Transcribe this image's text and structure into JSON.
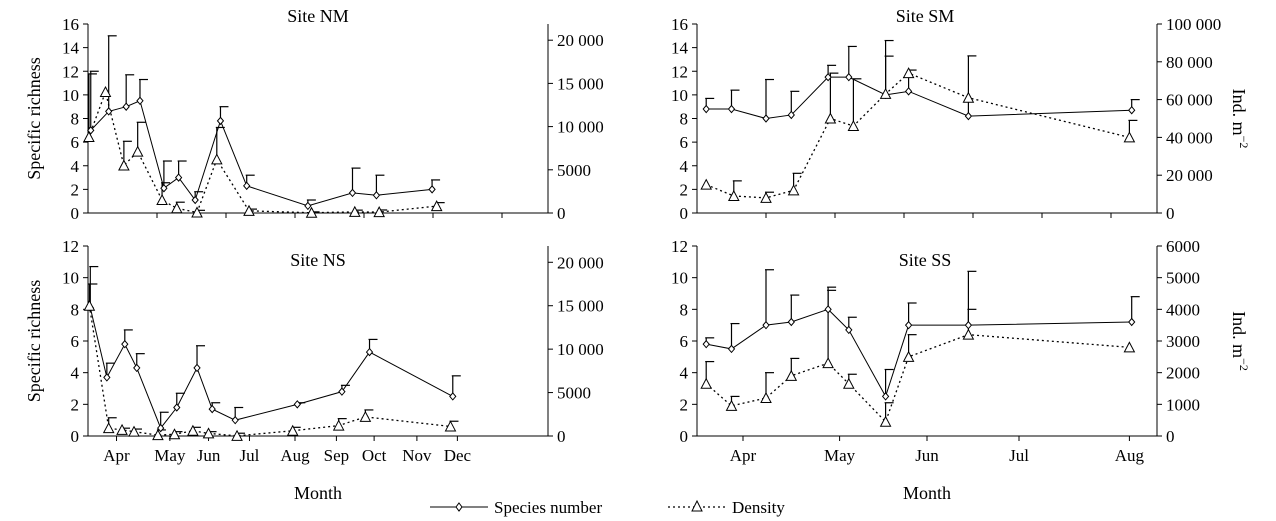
{
  "legend": {
    "species": "Species number",
    "density": "Density"
  },
  "chart_data": [
    {
      "id": "NM",
      "type": "line",
      "title": "Site NM",
      "ylabel": "Specific richness",
      "y2label": "",
      "xlabel": "",
      "ylim": [
        0,
        16
      ],
      "yticks": [
        0,
        2,
        4,
        6,
        8,
        10,
        12,
        14,
        16
      ],
      "y2lim": [
        0,
        21875
      ],
      "y2ticks": [
        0,
        5000,
        10000,
        15000,
        20000
      ],
      "y2ticklabels": [
        "0",
        "5000",
        "10 000",
        "15 000",
        "20 000"
      ],
      "xlim": [
        0,
        10
      ],
      "months": [],
      "series": [
        {
          "name": "Species number",
          "x": [
            0.06,
            0.45,
            0.83,
            1.13,
            1.65,
            1.97,
            2.33,
            2.88,
            3.45,
            4.78,
            5.75,
            6.27,
            7.48
          ],
          "y": [
            7.0,
            8.6,
            9.0,
            9.5,
            2.1,
            3.0,
            1.1,
            7.8,
            2.3,
            0.6,
            1.7,
            1.5,
            2.0
          ],
          "err": [
            5.0,
            6.4,
            2.7,
            1.8,
            2.3,
            1.4,
            0.7,
            1.2,
            0.9,
            0.5,
            2.1,
            1.7,
            0.8
          ]
        },
        {
          "name": "Density",
          "x": [
            0.02,
            0.38,
            0.78,
            1.08,
            1.61,
            1.93,
            2.37,
            2.8,
            3.5,
            4.86,
            5.8,
            6.33,
            7.58
          ],
          "y": [
            8800,
            14000,
            5500,
            7100,
            1500,
            550,
            60,
            6200,
            250,
            30,
            130,
            100,
            800
          ],
          "err": [
            7300,
            0,
            2800,
            3400,
            2000,
            700,
            250,
            3700,
            200,
            100,
            200,
            250,
            400
          ]
        }
      ]
    },
    {
      "id": "SM",
      "type": "line",
      "title": "Site SM",
      "ylabel": "",
      "y2label": "Ind. m",
      "y2label_sup": "−2",
      "xlabel": "",
      "ylim": [
        0,
        16
      ],
      "yticks": [
        0,
        2,
        4,
        6,
        8,
        10,
        12,
        14,
        16
      ],
      "y2lim": [
        0,
        100000
      ],
      "y2ticks": [
        0,
        20000,
        40000,
        60000,
        80000,
        100000
      ],
      "y2ticklabels": [
        "0",
        "20 000",
        "40 000",
        "60 000",
        "80 000",
        "100 000"
      ],
      "xlim": [
        0,
        10
      ],
      "months": [],
      "series": [
        {
          "name": "Species number",
          "x": [
            0.2,
            0.75,
            1.5,
            2.05,
            2.85,
            3.3,
            4.1,
            4.6,
            5.9,
            9.45
          ],
          "y": [
            8.8,
            8.8,
            8.0,
            8.3,
            11.5,
            11.5,
            10.0,
            10.3,
            8.2,
            8.7
          ],
          "err": [
            0.9,
            1.6,
            3.3,
            2.0,
            1.0,
            2.6,
            4.6,
            1.8,
            5.1,
            0.9
          ]
        },
        {
          "name": "Density",
          "x": [
            0.2,
            0.8,
            1.5,
            2.1,
            2.9,
            3.4,
            4.1,
            4.6,
            5.9,
            9.4
          ],
          "y": [
            15000,
            9000,
            8000,
            12000,
            50000,
            46000,
            63000,
            74000,
            61000,
            40000
          ],
          "err": [
            0,
            8000,
            3000,
            9000,
            24000,
            25000,
            20000,
            0,
            0,
            9000
          ]
        }
      ]
    },
    {
      "id": "NS",
      "type": "line",
      "title": "Site NS",
      "ylabel": "Specific richness",
      "y2label": "",
      "xlabel": "Month",
      "ylim": [
        0,
        12
      ],
      "yticks": [
        0,
        2,
        4,
        6,
        8,
        10,
        12
      ],
      "y2lim": [
        0,
        21875
      ],
      "y2ticks": [
        0,
        5000,
        10000,
        15000,
        20000
      ],
      "y2ticklabels": [
        "0",
        "5000",
        "10 000",
        "15 000",
        "20 000"
      ],
      "xlim": [
        0,
        10
      ],
      "months": [
        "Apr",
        "May",
        "Jun",
        "Jul",
        "Aug",
        "Sep",
        "Oct",
        "Nov",
        "Dec"
      ],
      "month_positions": [
        0.62,
        1.78,
        2.62,
        3.51,
        4.5,
        5.4,
        6.22,
        7.15,
        8.03
      ],
      "series": [
        {
          "name": "Species number",
          "x": [
            0.05,
            0.41,
            0.8,
            1.06,
            1.58,
            1.93,
            2.37,
            2.7,
            3.2,
            4.55,
            5.52,
            6.12,
            7.93
          ],
          "y": [
            8.1,
            3.7,
            5.8,
            4.3,
            0.5,
            1.8,
            4.3,
            1.7,
            1.0,
            2.0,
            2.8,
            5.3,
            2.5
          ],
          "err": [
            2.6,
            0.9,
            0.9,
            0.9,
            1.0,
            0.9,
            1.4,
            0.4,
            0.8,
            0.1,
            0.4,
            0.8,
            1.3
          ]
        },
        {
          "name": "Density",
          "x": [
            0.03,
            0.45,
            0.74,
            1.0,
            1.52,
            1.88,
            2.28,
            2.62,
            3.24,
            4.45,
            5.45,
            6.03,
            7.88
          ],
          "y": [
            15000,
            900,
            700,
            500,
            100,
            200,
            600,
            300,
            20,
            600,
            1200,
            2200,
            1100
          ],
          "err": [
            2500,
            1200,
            200,
            300,
            600,
            300,
            400,
            200,
            300,
            400,
            800,
            800,
            600
          ]
        }
      ]
    },
    {
      "id": "SS",
      "type": "line",
      "title": "Site SS",
      "ylabel": "",
      "y2label": "Ind. m",
      "y2label_sup": "−2",
      "xlabel": "Month",
      "ylim": [
        0,
        12
      ],
      "yticks": [
        0,
        2,
        4,
        6,
        8,
        10,
        12
      ],
      "y2lim": [
        0,
        6000
      ],
      "y2ticks": [
        0,
        1000,
        2000,
        3000,
        4000,
        5000,
        6000
      ],
      "y2ticklabels": [
        "0",
        "1000",
        "2000",
        "3000",
        "4000",
        "5000",
        "6000"
      ],
      "xlim": [
        0,
        10
      ],
      "months": [
        "Apr",
        "May",
        "Jun",
        "Jul",
        "Aug"
      ],
      "month_positions": [
        1.0,
        3.1,
        5.0,
        7.0,
        9.4
      ],
      "series": [
        {
          "name": "Species number",
          "x": [
            0.2,
            0.75,
            1.5,
            2.05,
            2.85,
            3.3,
            4.1,
            4.6,
            5.9,
            9.45
          ],
          "y": [
            5.8,
            5.5,
            7.0,
            7.2,
            8.0,
            6.7,
            2.5,
            7.0,
            7.0,
            7.2
          ],
          "err": [
            0.4,
            1.6,
            3.5,
            1.7,
            1.4,
            0.8,
            1.7,
            1.4,
            3.4,
            1.6
          ]
        },
        {
          "name": "Density",
          "x": [
            0.2,
            0.75,
            1.5,
            2.05,
            2.85,
            3.3,
            4.1,
            4.6,
            5.9,
            9.4
          ],
          "y": [
            1650,
            950,
            1200,
            1900,
            2300,
            1650,
            450,
            2500,
            3200,
            2800
          ],
          "err": [
            700,
            300,
            800,
            550,
            2300,
            300,
            600,
            700,
            800,
            0
          ]
        }
      ]
    }
  ]
}
